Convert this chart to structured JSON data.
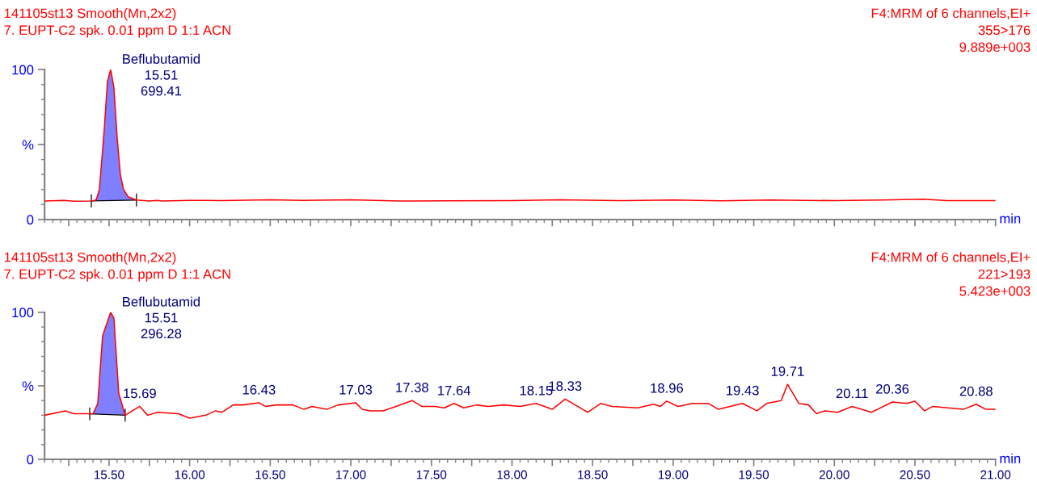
{
  "chart_data": [
    {
      "type": "line",
      "title": "141105st13 Smooth(Mn,2x2)\n7. EUPT-C2 spk. 0.01 ppm D 1:1 ACN",
      "subtitle": "F4:MRM of 6 channels,EI+\n355>176\n9.889e+003",
      "xlabel": "min",
      "xlim": [
        15.1,
        21.0
      ],
      "ylim": [
        0,
        100
      ],
      "tick_labels": "y",
      "grid": false,
      "legend": false,
      "xticks": [
        {
          "value": 15.25,
          "label": null
        },
        {
          "value": 15.5,
          "label": null
        },
        {
          "value": 15.75,
          "label": null
        },
        {
          "value": 16.0,
          "label": null
        },
        {
          "value": 16.25,
          "label": null
        },
        {
          "value": 16.5,
          "label": null
        },
        {
          "value": 16.75,
          "label": null
        },
        {
          "value": 17.0,
          "label": null
        },
        {
          "value": 17.25,
          "label": null
        },
        {
          "value": 17.5,
          "label": null
        },
        {
          "value": 17.75,
          "label": null
        },
        {
          "value": 18.0,
          "label": null
        },
        {
          "value": 18.25,
          "label": null
        },
        {
          "value": 18.5,
          "label": null
        },
        {
          "value": 18.75,
          "label": null
        },
        {
          "value": 19.0,
          "label": null
        },
        {
          "value": 19.25,
          "label": null
        },
        {
          "value": 19.5,
          "label": null
        },
        {
          "value": 19.75,
          "label": null
        },
        {
          "value": 20.0,
          "label": null
        },
        {
          "value": 20.25,
          "label": null
        },
        {
          "value": 20.5,
          "label": null
        },
        {
          "value": 20.75,
          "label": null
        },
        {
          "value": 21.0,
          "label": null
        }
      ],
      "yticks": [
        0,
        {
          "value": 50,
          "label": "%"
        },
        100
      ],
      "series": [
        {
          "type": "area",
          "color": "#7f7fff",
          "x": [
            15.39,
            15.42,
            15.44,
            15.47,
            15.49,
            15.51,
            15.53,
            15.55,
            15.57,
            15.59,
            15.62,
            15.67
          ],
          "values": [
            12.4,
            13,
            20,
            60,
            92,
            100,
            88,
            55,
            30,
            20,
            15,
            13
          ]
        },
        {
          "color": "#ff0000",
          "x": [
            15.1,
            15.22,
            15.28,
            15.39,
            15.42,
            15.44,
            15.47,
            15.49,
            15.51,
            15.53,
            15.55,
            15.57,
            15.59,
            15.62,
            15.67,
            15.75,
            15.8,
            15.83,
            16.0,
            16.2,
            16.5,
            16.7,
            17.0,
            17.3,
            17.6,
            18.0,
            18.3,
            18.7,
            19.0,
            19.3,
            19.6,
            20.0,
            20.3,
            20.55,
            20.7,
            21.0
          ],
          "values": [
            12.4,
            12.8,
            12.2,
            12.4,
            13,
            20,
            60,
            92,
            100,
            88,
            55,
            30,
            20,
            15,
            13,
            12.4,
            12.8,
            12.4,
            12.8,
            12.6,
            13.2,
            12.8,
            13.2,
            12.3,
            12.5,
            12.6,
            13.1,
            12.6,
            13,
            12.5,
            13,
            12.6,
            13,
            13.5,
            12.6,
            12.6
          ]
        }
      ],
      "annotations": [
        {
          "text": "Beflubutamid\n15.51\n699.41",
          "x": 15.51,
          "y": 100
        }
      ]
    },
    {
      "type": "line",
      "title": "141105st13 Smooth(Mn,2x2)\n7. EUPT-C2 spk. 0.01 ppm D 1:1 ACN",
      "subtitle": "F4:MRM of 6 channels,EI+\n221>193\n5.423e+003",
      "xlabel": "min",
      "xlim": [
        15.1,
        21.0
      ],
      "ylim": [
        0,
        100
      ],
      "grid": false,
      "legend": false,
      "xticks": [
        {
          "value": 15.25,
          "label": null
        },
        {
          "value": 15.5,
          "label": "15.50"
        },
        {
          "value": 15.75,
          "label": null
        },
        {
          "value": 16.0,
          "label": "16.00"
        },
        {
          "value": 16.25,
          "label": null
        },
        {
          "value": 16.5,
          "label": "16.50"
        },
        {
          "value": 16.75,
          "label": null
        },
        {
          "value": 17.0,
          "label": "17.00"
        },
        {
          "value": 17.25,
          "label": null
        },
        {
          "value": 17.5,
          "label": "17.50"
        },
        {
          "value": 17.75,
          "label": null
        },
        {
          "value": 18.0,
          "label": "18.00"
        },
        {
          "value": 18.25,
          "label": null
        },
        {
          "value": 18.5,
          "label": "18.50"
        },
        {
          "value": 18.75,
          "label": null
        },
        {
          "value": 19.0,
          "label": "19.00"
        },
        {
          "value": 19.25,
          "label": null
        },
        {
          "value": 19.5,
          "label": "19.50"
        },
        {
          "value": 19.75,
          "label": null
        },
        {
          "value": 20.0,
          "label": "20.00"
        },
        {
          "value": 20.25,
          "label": null
        },
        {
          "value": 20.5,
          "label": "20.50"
        },
        {
          "value": 20.75,
          "label": null
        },
        {
          "value": 21.0,
          "label": "21.00"
        }
      ],
      "yticks": [
        0,
        {
          "value": 50,
          "label": "%"
        },
        100
      ],
      "series": [
        {
          "type": "area",
          "color": "#7f7fff",
          "x": [
            15.38,
            15.4,
            15.43,
            15.46,
            15.51,
            15.53,
            15.56,
            15.6
          ],
          "values": [
            31,
            31,
            38,
            84,
            100,
            96,
            45,
            30
          ]
        },
        {
          "color": "#ff0000",
          "x": [
            15.1,
            15.23,
            15.28,
            15.38,
            15.4,
            15.43,
            15.46,
            15.51,
            15.53,
            15.56,
            15.6,
            15.69,
            15.74,
            15.8,
            15.93,
            16.0,
            16.1,
            16.16,
            16.2,
            16.27,
            16.33,
            16.43,
            16.47,
            16.54,
            16.64,
            16.71,
            16.76,
            16.85,
            16.92,
            17.03,
            17.07,
            17.12,
            17.2,
            17.28,
            17.38,
            17.44,
            17.52,
            17.58,
            17.64,
            17.7,
            17.78,
            17.85,
            17.95,
            18.05,
            18.15,
            18.25,
            18.33,
            18.47,
            18.55,
            18.62,
            18.78,
            18.88,
            18.92,
            18.96,
            19.03,
            19.12,
            19.22,
            19.28,
            19.43,
            19.52,
            19.58,
            19.67,
            19.71,
            19.78,
            19.84,
            19.89,
            19.94,
            20.02,
            20.11,
            20.23,
            20.36,
            20.45,
            20.5,
            20.56,
            20.61,
            20.8,
            20.88,
            20.94,
            21.0
          ],
          "values": [
            30,
            33,
            31,
            31,
            31,
            38,
            84,
            100,
            96,
            45,
            30,
            36,
            30,
            32,
            31,
            28,
            30,
            33,
            32,
            37,
            37,
            38.5,
            36,
            37,
            37,
            34,
            36,
            34,
            37,
            38.5,
            34,
            33,
            33,
            36,
            40,
            36,
            36,
            35,
            38,
            35,
            37,
            36,
            37,
            36,
            38,
            34,
            41,
            32,
            38,
            36,
            35,
            37.5,
            36,
            39.6,
            36,
            38,
            38,
            34,
            38,
            33,
            38,
            40,
            51,
            38,
            37,
            31,
            33,
            32,
            36,
            32,
            39,
            38,
            39.5,
            33,
            36,
            34,
            37.5,
            34,
            34
          ]
        }
      ],
      "annotations": [
        {
          "text": "Beflubutamid\n15.51\n296.28",
          "x": 15.51,
          "y": 100
        },
        {
          "text": "15.69",
          "x": 15.69,
          "y": 36
        },
        {
          "text": "16.43",
          "x": 16.43,
          "y": 38.5
        },
        {
          "text": "17.03",
          "x": 17.03,
          "y": 38.5
        },
        {
          "text": "17.38",
          "x": 17.38,
          "y": 40
        },
        {
          "text": "17.64",
          "x": 17.64,
          "y": 38
        },
        {
          "text": "18.15",
          "x": 18.15,
          "y": 38
        },
        {
          "text": "18.33",
          "x": 18.33,
          "y": 41
        },
        {
          "text": "18.96",
          "x": 18.96,
          "y": 39.6
        },
        {
          "text": "19.43",
          "x": 19.43,
          "y": 38
        },
        {
          "text": "19.71",
          "x": 19.71,
          "y": 51
        },
        {
          "text": "20.11",
          "x": 20.11,
          "y": 36
        },
        {
          "text": "20.36",
          "x": 20.36,
          "y": 39
        },
        {
          "text": "20.88",
          "x": 20.88,
          "y": 37.5
        }
      ]
    }
  ]
}
